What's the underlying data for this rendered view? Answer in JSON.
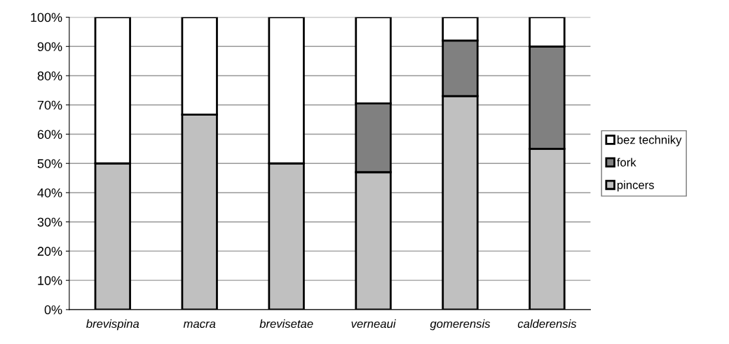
{
  "chart_data": {
    "type": "bar",
    "stacked": true,
    "categories": [
      "brevispina",
      "macra",
      "brevisetae",
      "verneaui",
      "gomerensis",
      "calderensis"
    ],
    "series": [
      {
        "name": "pincers",
        "color": "#c0c0c0",
        "values": [
          50,
          66.7,
          50,
          47,
          73,
          55
        ]
      },
      {
        "name": "fork",
        "color": "#808080",
        "values": [
          0,
          0,
          0,
          23.5,
          19,
          35
        ]
      },
      {
        "name": "bez techniky",
        "color": "#ffffff",
        "values": [
          50,
          33.3,
          50,
          29.5,
          8,
          10
        ]
      }
    ],
    "ylim": [
      0,
      100
    ],
    "yticks": [
      {
        "value": 0,
        "label": "0%"
      },
      {
        "value": 10,
        "label": "10%"
      },
      {
        "value": 20,
        "label": "20%"
      },
      {
        "value": 30,
        "label": "30%"
      },
      {
        "value": 40,
        "label": "40%"
      },
      {
        "value": 50,
        "label": "50%"
      },
      {
        "value": 60,
        "label": "60%"
      },
      {
        "value": 70,
        "label": "70%"
      },
      {
        "value": 80,
        "label": "80%"
      },
      {
        "value": 90,
        "label": "90%"
      },
      {
        "value": 100,
        "label": "100%"
      }
    ],
    "grid": "y",
    "legend": "right"
  }
}
